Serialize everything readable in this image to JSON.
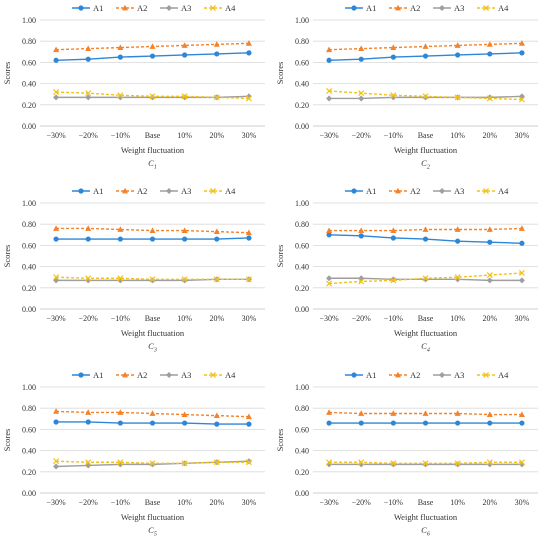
{
  "series_styles": [
    {
      "name": "A1",
      "color": "#2e86d6",
      "marker": "circle",
      "dash": "none"
    },
    {
      "name": "A2",
      "color": "#f5822a",
      "marker": "triangle",
      "dash": "dashed"
    },
    {
      "name": "A3",
      "color": "#9e9e9e",
      "marker": "diamond",
      "dash": "solid"
    },
    {
      "name": "A4",
      "color": "#f2c21b",
      "marker": "x",
      "dash": "dashed"
    }
  ],
  "chart_data": [
    {
      "type": "line",
      "caption": "C",
      "caption_sub": "1",
      "categories": [
        "−30%",
        "−20%",
        "−10%",
        "Base",
        "10%",
        "20%",
        "30%"
      ],
      "xlabel": "Weight fluctuation",
      "ylabel": "Scores",
      "ylim": [
        0,
        1
      ],
      "yticks": [
        "0.00",
        "0.20",
        "0.40",
        "0.60",
        "0.80",
        "1.00"
      ],
      "grid": true,
      "legend": "top",
      "series": [
        {
          "name": "A1",
          "values": [
            0.62,
            0.63,
            0.65,
            0.66,
            0.67,
            0.68,
            0.69
          ]
        },
        {
          "name": "A2",
          "values": [
            0.72,
            0.73,
            0.74,
            0.75,
            0.76,
            0.77,
            0.78
          ]
        },
        {
          "name": "A3",
          "values": [
            0.27,
            0.27,
            0.27,
            0.27,
            0.27,
            0.27,
            0.28
          ]
        },
        {
          "name": "A4",
          "values": [
            0.32,
            0.31,
            0.29,
            0.28,
            0.28,
            0.27,
            0.26
          ]
        }
      ]
    },
    {
      "type": "line",
      "caption": "C",
      "caption_sub": "2",
      "categories": [
        "−30%",
        "−20%",
        "−10%",
        "Base",
        "10%",
        "20%",
        "30%"
      ],
      "xlabel": "Weight fluctuation",
      "ylabel": "Scores",
      "ylim": [
        0,
        1
      ],
      "yticks": [
        "0.00",
        "0.20",
        "0.40",
        "0.60",
        "0.80",
        "1.00"
      ],
      "grid": true,
      "legend": "top",
      "series": [
        {
          "name": "A1",
          "values": [
            0.62,
            0.63,
            0.65,
            0.66,
            0.67,
            0.68,
            0.69
          ]
        },
        {
          "name": "A2",
          "values": [
            0.72,
            0.73,
            0.74,
            0.75,
            0.76,
            0.77,
            0.78
          ]
        },
        {
          "name": "A3",
          "values": [
            0.26,
            0.26,
            0.27,
            0.27,
            0.27,
            0.27,
            0.28
          ]
        },
        {
          "name": "A4",
          "values": [
            0.33,
            0.31,
            0.29,
            0.28,
            0.27,
            0.26,
            0.25
          ]
        }
      ]
    },
    {
      "type": "line",
      "caption": "C",
      "caption_sub": "3",
      "categories": [
        "−30%",
        "−20%",
        "−10%",
        "Base",
        "10%",
        "20%",
        "30%"
      ],
      "xlabel": "Weight fluctuation",
      "ylabel": "Scores",
      "ylim": [
        0,
        1
      ],
      "yticks": [
        "0.00",
        "0.20",
        "0.40",
        "0.60",
        "0.80",
        "1.00"
      ],
      "grid": true,
      "legend": "top",
      "series": [
        {
          "name": "A1",
          "values": [
            0.66,
            0.66,
            0.66,
            0.66,
            0.66,
            0.66,
            0.67
          ]
        },
        {
          "name": "A2",
          "values": [
            0.76,
            0.76,
            0.75,
            0.74,
            0.74,
            0.73,
            0.72
          ]
        },
        {
          "name": "A3",
          "values": [
            0.27,
            0.27,
            0.27,
            0.27,
            0.27,
            0.28,
            0.28
          ]
        },
        {
          "name": "A4",
          "values": [
            0.3,
            0.29,
            0.29,
            0.28,
            0.28,
            0.28,
            0.28
          ]
        }
      ]
    },
    {
      "type": "line",
      "caption": "C",
      "caption_sub": "4",
      "categories": [
        "−30%",
        "−20%",
        "−10%",
        "Base",
        "10%",
        "20%",
        "30%"
      ],
      "xlabel": "Weight fluctuation",
      "ylabel": "Scores",
      "ylim": [
        0,
        1
      ],
      "yticks": [
        "0.00",
        "0.20",
        "0.40",
        "0.60",
        "0.80",
        "1.00"
      ],
      "grid": true,
      "legend": "top",
      "series": [
        {
          "name": "A1",
          "values": [
            0.7,
            0.69,
            0.67,
            0.66,
            0.64,
            0.63,
            0.62
          ]
        },
        {
          "name": "A2",
          "values": [
            0.74,
            0.74,
            0.74,
            0.75,
            0.75,
            0.75,
            0.76
          ]
        },
        {
          "name": "A3",
          "values": [
            0.29,
            0.29,
            0.28,
            0.28,
            0.28,
            0.27,
            0.27
          ]
        },
        {
          "name": "A4",
          "values": [
            0.24,
            0.26,
            0.27,
            0.29,
            0.3,
            0.32,
            0.34
          ]
        }
      ]
    },
    {
      "type": "line",
      "caption": "C",
      "caption_sub": "5",
      "categories": [
        "−30%",
        "−20%",
        "−10%",
        "Base",
        "10%",
        "20%",
        "30%"
      ],
      "xlabel": "Weight fluctuation",
      "ylabel": "Scores",
      "ylim": [
        0,
        1
      ],
      "yticks": [
        "0.00",
        "0.20",
        "0.40",
        "0.60",
        "0.80",
        "1.00"
      ],
      "grid": true,
      "legend": "top",
      "series": [
        {
          "name": "A1",
          "values": [
            0.67,
            0.67,
            0.66,
            0.66,
            0.66,
            0.65,
            0.65
          ]
        },
        {
          "name": "A2",
          "values": [
            0.77,
            0.76,
            0.76,
            0.75,
            0.74,
            0.73,
            0.72
          ]
        },
        {
          "name": "A3",
          "values": [
            0.25,
            0.26,
            0.27,
            0.27,
            0.28,
            0.29,
            0.3
          ]
        },
        {
          "name": "A4",
          "values": [
            0.3,
            0.29,
            0.29,
            0.28,
            0.28,
            0.29,
            0.29
          ]
        }
      ]
    },
    {
      "type": "line",
      "caption": "C",
      "caption_sub": "6",
      "categories": [
        "−30%",
        "−20%",
        "−10%",
        "Base",
        "10%",
        "20%",
        "30%"
      ],
      "xlabel": "Weight fluctuation",
      "ylabel": "Scores",
      "ylim": [
        0,
        1
      ],
      "yticks": [
        "0.00",
        "0.20",
        "0.40",
        "0.60",
        "0.80",
        "1.00"
      ],
      "grid": true,
      "legend": "top",
      "series": [
        {
          "name": "A1",
          "values": [
            0.66,
            0.66,
            0.66,
            0.66,
            0.66,
            0.66,
            0.66
          ]
        },
        {
          "name": "A2",
          "values": [
            0.76,
            0.75,
            0.75,
            0.75,
            0.75,
            0.74,
            0.74
          ]
        },
        {
          "name": "A3",
          "values": [
            0.27,
            0.27,
            0.27,
            0.27,
            0.27,
            0.27,
            0.27
          ]
        },
        {
          "name": "A4",
          "values": [
            0.29,
            0.29,
            0.28,
            0.28,
            0.28,
            0.29,
            0.29
          ]
        }
      ]
    }
  ]
}
